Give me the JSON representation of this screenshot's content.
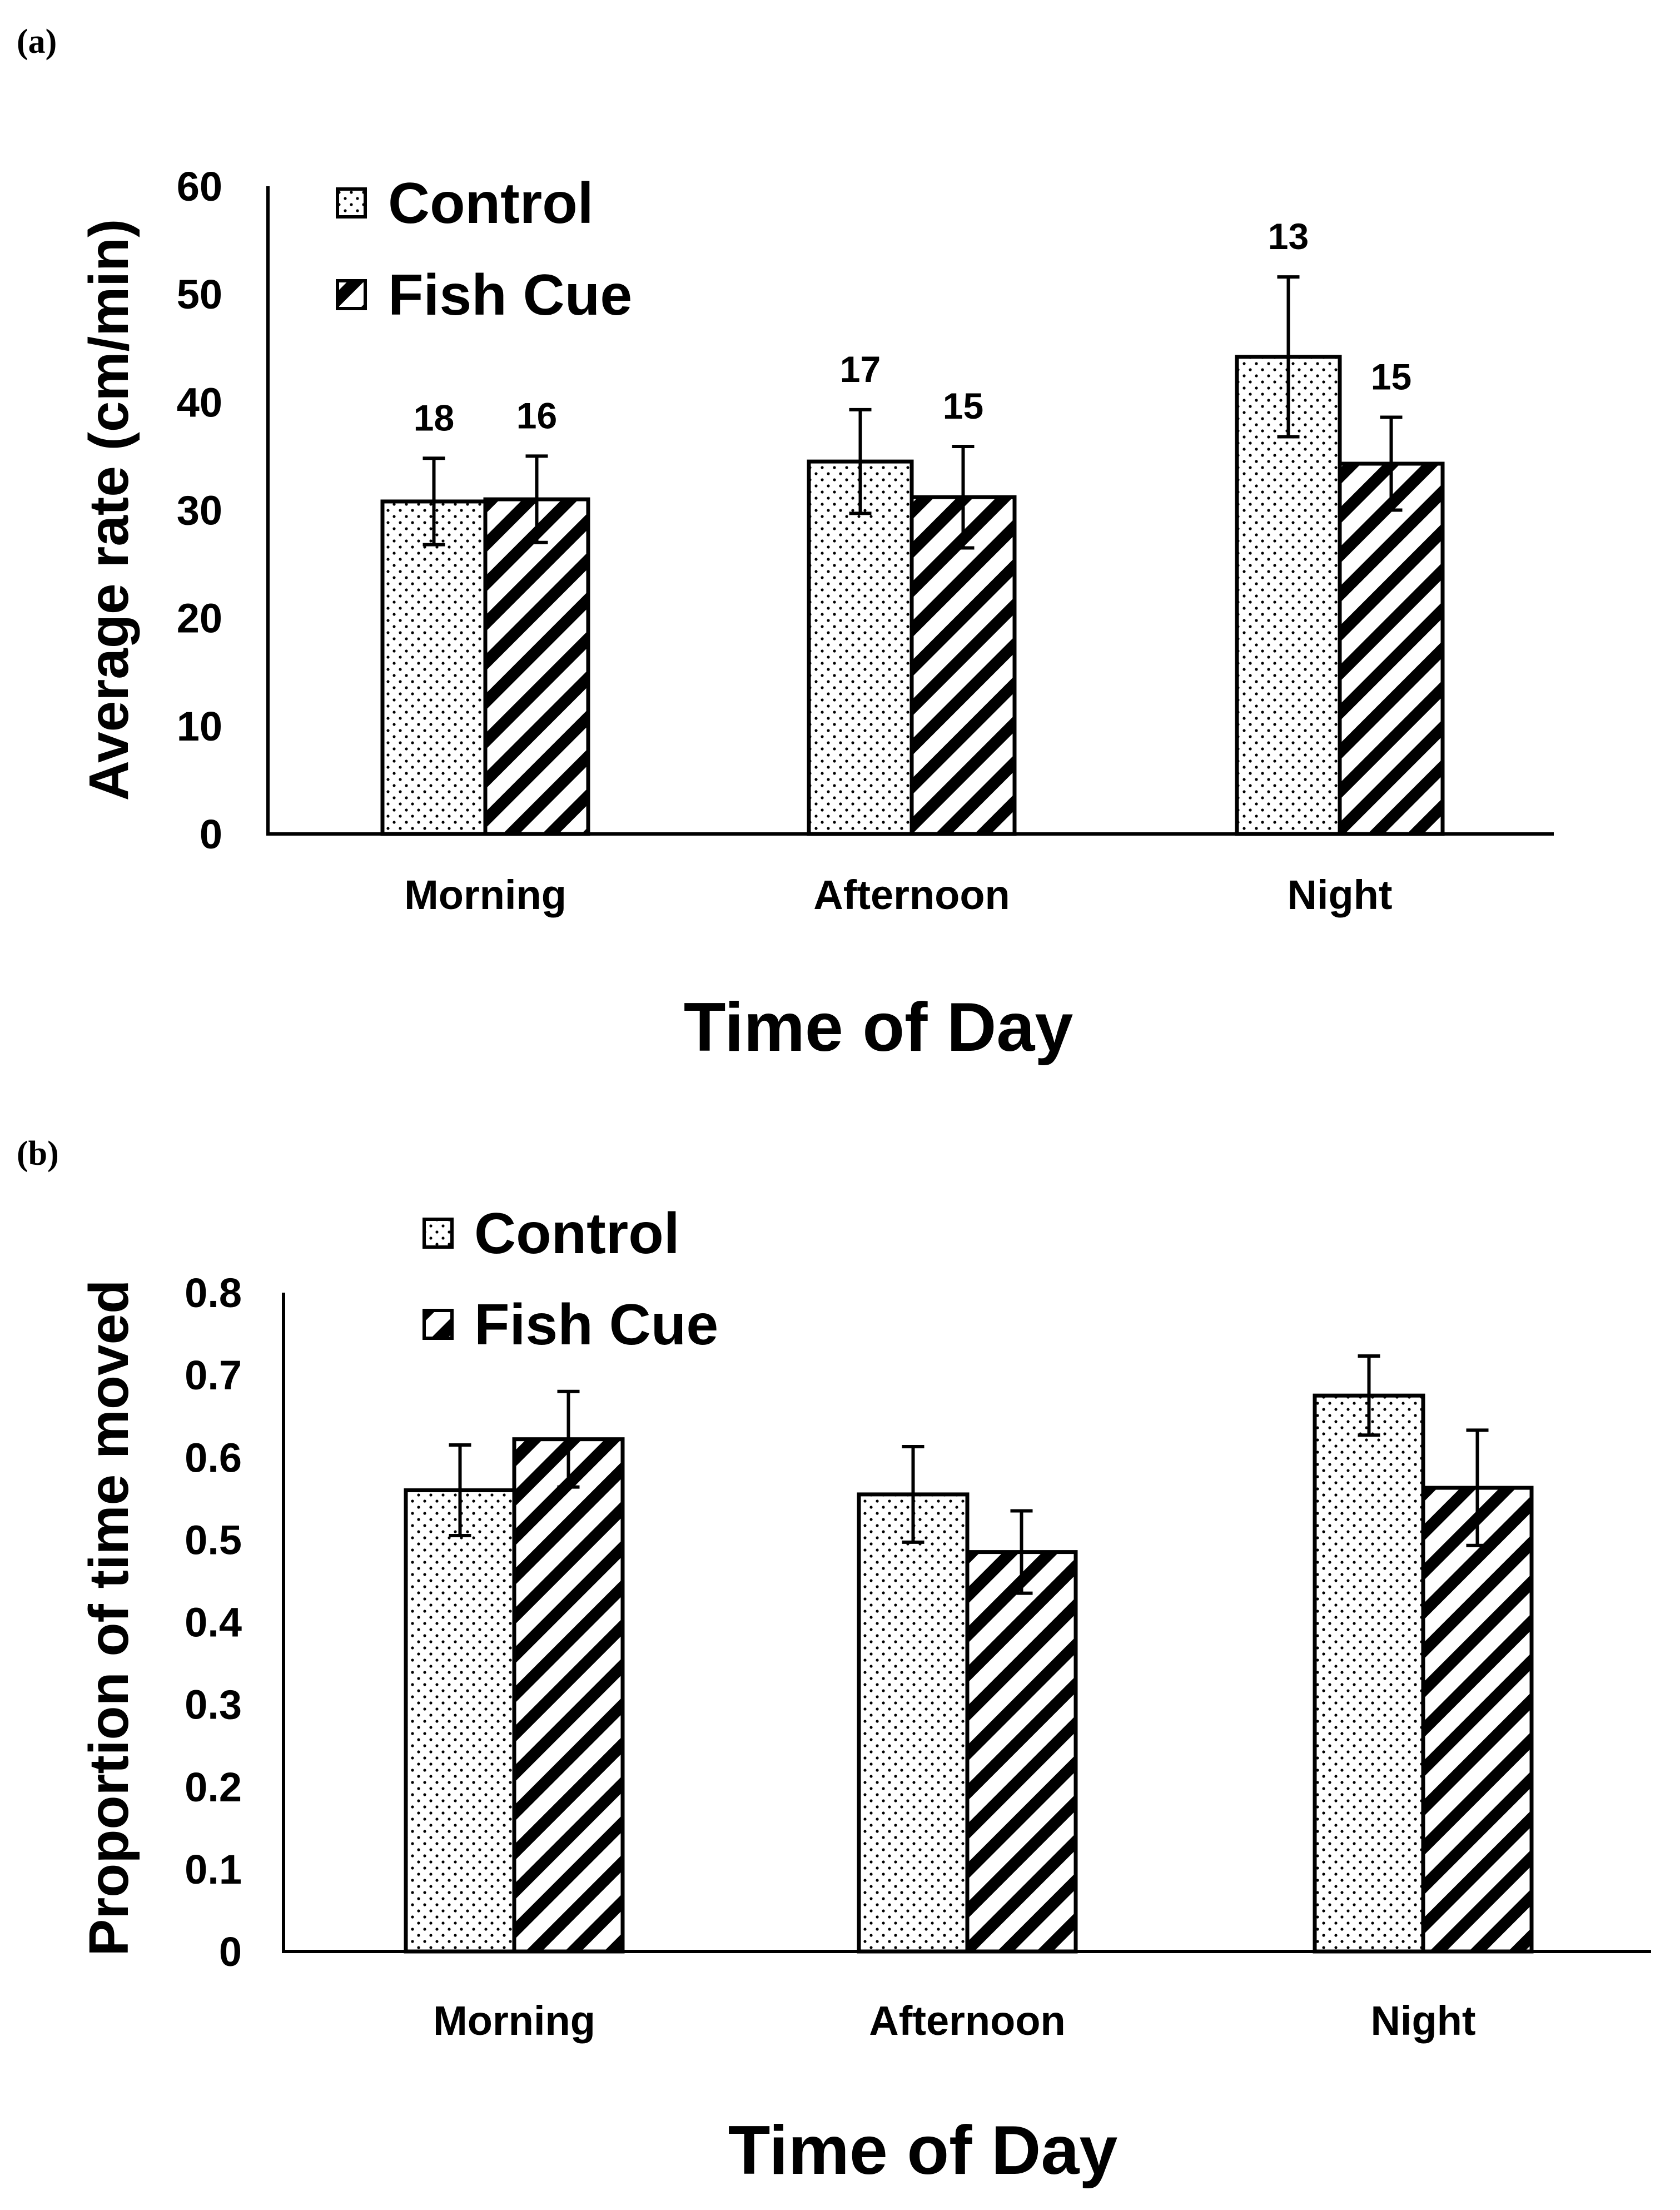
{
  "chart_data": [
    {
      "type": "bar",
      "panel_label": "(a)",
      "categories": [
        "Morning",
        "Afternoon",
        "Night"
      ],
      "series": [
        {
          "name": "Control",
          "pattern": "dots",
          "values": [
            30.8,
            34.5,
            44.2
          ],
          "errors": [
            4.0,
            4.8,
            7.4
          ],
          "n": [
            "18",
            "17",
            "13"
          ]
        },
        {
          "name": "Fish Cue",
          "pattern": "hatch",
          "values": [
            31.0,
            31.2,
            34.3
          ],
          "errors": [
            4.0,
            4.7,
            4.3
          ],
          "n": [
            "16",
            "15",
            "15"
          ]
        }
      ],
      "xlabel": "Time of Day",
      "ylabel": "Average rate (cm/min)",
      "ylim": [
        0,
        60
      ],
      "yticks": [
        0,
        10,
        20,
        30,
        40,
        50,
        60
      ],
      "ytick_labels": [
        "0",
        "10",
        "20",
        "30",
        "40",
        "50",
        "60"
      ],
      "legend_position": "top-left"
    },
    {
      "type": "bar",
      "panel_label": "(b)",
      "categories": [
        "Morning",
        "Afternoon",
        "Night"
      ],
      "series": [
        {
          "name": "Control",
          "pattern": "dots",
          "values": [
            0.56,
            0.555,
            0.675
          ],
          "errors": [
            0.055,
            0.058,
            0.048
          ]
        },
        {
          "name": "Fish Cue",
          "pattern": "hatch",
          "values": [
            0.622,
            0.485,
            0.563
          ],
          "errors": [
            0.058,
            0.05,
            0.07
          ]
        }
      ],
      "xlabel": "Time of Day",
      "ylabel": "Proportion of time moved",
      "ylim": [
        0,
        0.8
      ],
      "yticks": [
        0,
        0.1,
        0.2,
        0.3,
        0.4,
        0.5,
        0.6,
        0.7,
        0.8
      ],
      "ytick_labels": [
        "0",
        "0.1",
        "0.2",
        "0.3",
        "0.4",
        "0.5",
        "0.6",
        "0.7",
        "0.8"
      ],
      "legend_position": "top-left"
    }
  ]
}
